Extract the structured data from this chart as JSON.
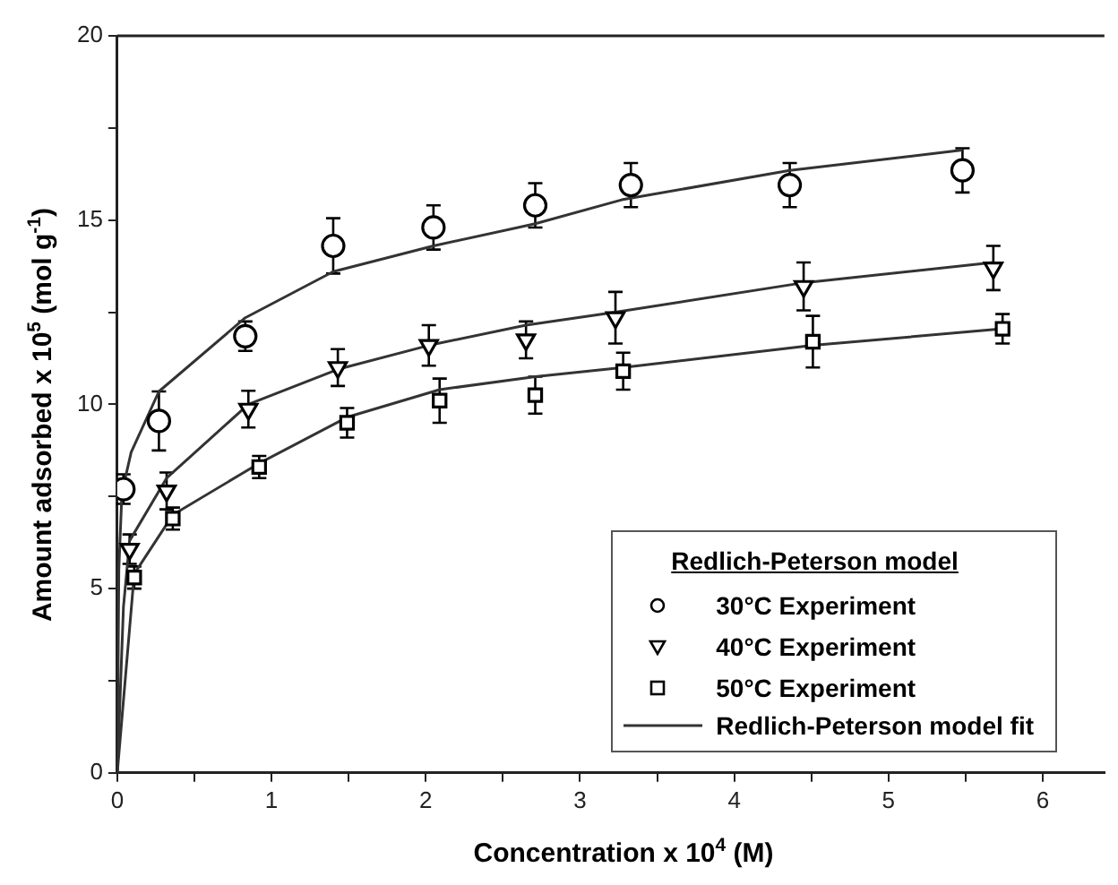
{
  "chart_data": {
    "type": "scatter",
    "xlabel": "Concentration x 10$^{4}$ (M)",
    "ylabel": "Amount adsorbed x 10$^{5}$ (mol g$^{-1}$)",
    "legend_title": "Redlich-Peterson model",
    "legend": "bottom right",
    "grid": false,
    "xlim": [
      0,
      6.4
    ],
    "xticks": [
      0,
      {
        "value": 0.5,
        "label": null
      },
      1,
      {
        "value": 1.5,
        "label": null
      },
      2,
      {
        "value": 2.5,
        "label": null
      },
      3,
      {
        "value": 3.5,
        "label": null
      },
      4,
      {
        "value": 4.5,
        "label": null
      },
      5,
      {
        "value": 5.5,
        "label": null
      },
      6
    ],
    "ylim": [
      0,
      20
    ],
    "yticks": [
      0,
      {
        "value": 2.5,
        "label": null
      },
      5,
      {
        "value": 7.5,
        "label": null
      },
      10,
      {
        "value": 12.5,
        "label": null
      },
      15,
      {
        "value": 17.5,
        "label": null
      },
      20
    ],
    "series": [
      {
        "name": "30°C Experiment",
        "type": "scatter",
        "marker": "circle",
        "color": "#000000",
        "x": [
          0.04,
          0.27,
          0.83,
          1.4,
          2.05,
          2.71,
          3.33,
          4.36,
          5.48
        ],
        "values": [
          7.7,
          9.55,
          11.85,
          14.3,
          14.8,
          15.4,
          15.95,
          15.95,
          16.35
        ],
        "errors": [
          0.4,
          0.8,
          0.4,
          0.75,
          0.6,
          0.6,
          0.6,
          0.6,
          0.6
        ]
      },
      {
        "name": "40°C Experiment",
        "type": "scatter",
        "marker": "triangle",
        "color": "#000000",
        "x": [
          0.08,
          0.32,
          0.85,
          1.43,
          2.02,
          2.65,
          3.23,
          4.45,
          5.68
        ],
        "values": [
          6.07,
          7.65,
          9.87,
          11.0,
          11.6,
          11.75,
          12.35,
          13.2,
          13.7
        ],
        "errors": [
          0.4,
          0.5,
          0.5,
          0.5,
          0.55,
          0.5,
          0.7,
          0.65,
          0.6
        ]
      },
      {
        "name": "50°C Experiment",
        "type": "scatter",
        "marker": "square",
        "color": "#000000",
        "x": [
          0.11,
          0.36,
          0.92,
          1.49,
          2.09,
          2.71,
          3.28,
          4.51,
          5.74
        ],
        "values": [
          5.3,
          6.9,
          8.3,
          9.5,
          10.1,
          10.25,
          10.9,
          11.7,
          12.05
        ],
        "errors": [
          0.3,
          0.3,
          0.3,
          0.4,
          0.6,
          0.5,
          0.5,
          0.7,
          0.4
        ]
      },
      {
        "name": "Redlich-Peterson model fit",
        "type": "line",
        "marker": "none",
        "color": "#333333",
        "x": [
          0,
          0.01,
          0.03,
          0.09,
          0.27,
          0.83,
          1.4,
          2.05,
          2.71,
          3.27,
          4.36,
          5.48
        ],
        "values": [
          0,
          5.5,
          7.6,
          8.7,
          10.35,
          12.35,
          13.6,
          14.3,
          14.9,
          15.55,
          16.35,
          16.9
        ]
      },
      {
        "type": "line",
        "marker": "none",
        "color": "#333333",
        "x": [
          0,
          0.04,
          0.08,
          0.32,
          0.85,
          1.43,
          2.02,
          2.65,
          3.23,
          4.45,
          5.68
        ],
        "values": [
          0,
          4.5,
          6.3,
          8.0,
          10.0,
          10.95,
          11.6,
          12.15,
          12.5,
          13.3,
          13.85
        ]
      },
      {
        "type": "line",
        "marker": "none",
        "color": "#333333",
        "x": [
          0,
          0.11,
          0.36,
          0.92,
          1.49,
          2.09,
          2.71,
          3.28,
          4.51,
          5.74
        ],
        "values": [
          0,
          5.4,
          7.0,
          8.4,
          9.65,
          10.4,
          10.75,
          11.0,
          11.6,
          12.05
        ]
      }
    ]
  }
}
